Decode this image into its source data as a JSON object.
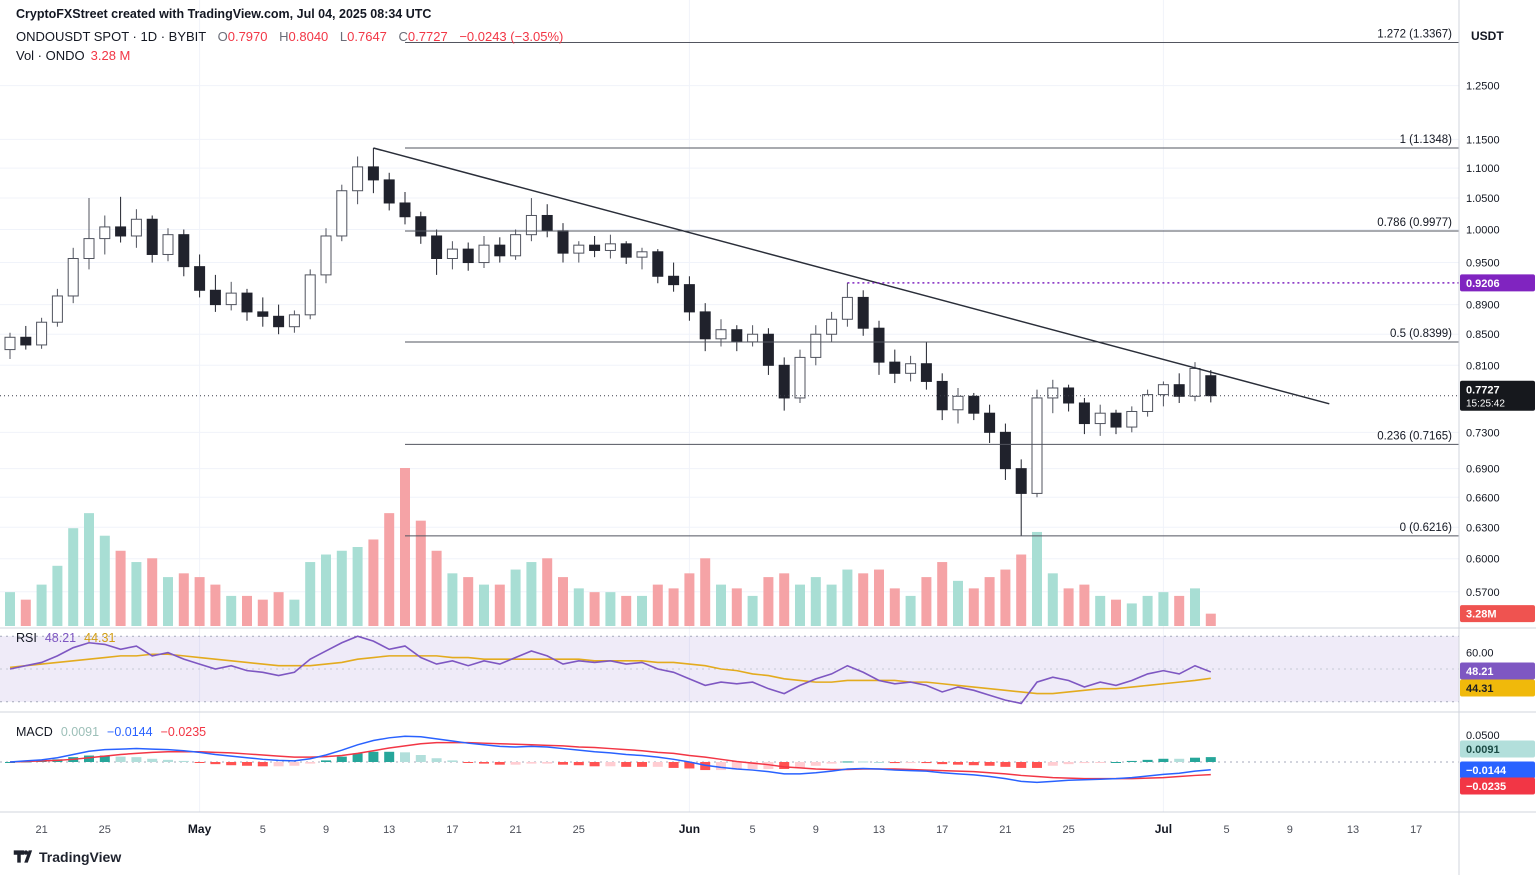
{
  "header": {
    "attribution": "CryptoFXStreet created with TradingView.com, Jul 04, 2025 08:34 UTC",
    "symbol_title": "ONDOUSDT SPOT · 1D · BYBIT",
    "ohlc": {
      "o_label": "O",
      "o": "0.7970",
      "h_label": "H",
      "h": "0.8040",
      "l_label": "L",
      "l": "0.7647",
      "c_label": "C",
      "c": "0.7727",
      "change": "−0.0243 (−3.05%)"
    },
    "volume_label": "Vol · ONDO",
    "volume_value": "3.28 M"
  },
  "axis": {
    "currency": "USDT",
    "price_ticks": [
      {
        "label": "1.2500",
        "v": 1.25
      },
      {
        "label": "1.1500",
        "v": 1.15
      },
      {
        "label": "1.1000",
        "v": 1.1
      },
      {
        "label": "1.0500",
        "v": 1.05
      },
      {
        "label": "1.0000",
        "v": 1.0
      },
      {
        "label": "0.9500",
        "v": 0.95
      },
      {
        "label": "0.8900",
        "v": 0.89
      },
      {
        "label": "0.8500",
        "v": 0.85
      },
      {
        "label": "0.8100",
        "v": 0.81
      },
      {
        "label": "0.7300",
        "v": 0.73
      },
      {
        "label": "0.6900",
        "v": 0.69
      },
      {
        "label": "0.6600",
        "v": 0.66
      },
      {
        "label": "0.6300",
        "v": 0.63
      },
      {
        "label": "0.6000",
        "v": 0.6
      },
      {
        "label": "0.5700",
        "v": 0.57
      }
    ],
    "rsi_ticks": [
      {
        "label": "60.00",
        "v": 60
      }
    ],
    "macd_ticks": [
      {
        "label": "0.0500",
        "v": 0.05
      }
    ],
    "time_ticks": [
      {
        "label": "21",
        "index": 2
      },
      {
        "label": "25",
        "index": 6
      },
      {
        "label": "May",
        "index": 12,
        "month": true
      },
      {
        "label": "5",
        "index": 16
      },
      {
        "label": "9",
        "index": 20
      },
      {
        "label": "13",
        "index": 24
      },
      {
        "label": "17",
        "index": 28
      },
      {
        "label": "21",
        "index": 32
      },
      {
        "label": "25",
        "index": 36
      },
      {
        "label": "Jun",
        "index": 43,
        "month": true
      },
      {
        "label": "5",
        "index": 47
      },
      {
        "label": "9",
        "index": 51
      },
      {
        "label": "13",
        "index": 55
      },
      {
        "label": "17",
        "index": 59
      },
      {
        "label": "21",
        "index": 63
      },
      {
        "label": "25",
        "index": 67
      },
      {
        "label": "Jul",
        "index": 73,
        "month": true
      },
      {
        "label": "5",
        "index": 77
      },
      {
        "label": "9",
        "index": 81
      },
      {
        "label": "13",
        "index": 85
      },
      {
        "label": "17",
        "index": 89
      }
    ]
  },
  "overlays": {
    "fib_levels": [
      {
        "label": "1.272 (1.3367)",
        "price": 1.3367
      },
      {
        "label": "1 (1.1348)",
        "price": 1.1348
      },
      {
        "label": "0.786 (0.9977)",
        "price": 0.9977
      },
      {
        "label": "0.5 (0.8399)",
        "price": 0.8399
      },
      {
        "label": "0.236 (0.7165)",
        "price": 0.7165
      },
      {
        "label": "0 (0.6216)",
        "price": 0.6216
      }
    ],
    "trendline": {
      "i1": 23,
      "p1": 1.1348,
      "i2": 83.5,
      "p2": 0.763
    },
    "hline": {
      "price": 0.9206,
      "label": "0.9206",
      "start_index": 53
    },
    "last_price": {
      "value": 0.7727,
      "label": "0.7727",
      "countdown": "15:25:42"
    },
    "volume_badge": "3.28M"
  },
  "rsi_panel": {
    "label": "RSI",
    "value": "48.21",
    "ma_value": "44.31"
  },
  "macd_panel": {
    "label": "MACD",
    "hist_value": "0.0091",
    "macd_value": "−0.0144",
    "signal_value": "−0.0235"
  },
  "footer": {
    "logo_text": "TradingView"
  },
  "colors": {
    "up_fill": "#ffffff",
    "up_border": "#50535e",
    "down_fill": "#20222c",
    "vol_up": "#a8ded4",
    "vol_down": "#f5a3a6",
    "rsi_line": "#7e57c2",
    "rsi_ma_line": "#e3ab1e",
    "rsi_band": "rgba(126,87,194,0.12)",
    "macd_line": "#2962ff",
    "signal_line": "#f23645",
    "hist_pos_grow": "#26a69a",
    "hist_pos_fall": "#b2dfdb",
    "hist_neg_fall": "#ff5252",
    "hist_neg_grow": "#ffcdd2",
    "fib_line": "#52555f",
    "trend_line": "#2a2e39",
    "hline": "#8024c0",
    "last_badge_bg": "#16181d",
    "vol_badge_bg": "#ef5350",
    "rsi_badge_bg": "#7e57c2",
    "rsi_ma_badge_bg": "#f0b90b",
    "macd_hist_badge_bg": "#b2dfdb",
    "macd_badge_bg": "#2962ff",
    "signal_badge_bg": "#f23645",
    "accent_red": "#f23645",
    "grid": "#f0f3fa",
    "axis_border": "#d1d4dc",
    "text_dark": "#131722",
    "text_gray": "#4c4f59"
  },
  "chart_data": {
    "type": "candlestick",
    "symbol": "ONDOUSDT",
    "exchange": "BYBIT",
    "interval": "1D",
    "price_scale": "log",
    "ylim": [
      0.55,
      1.35
    ],
    "dates": [
      "04-19",
      "04-20",
      "04-21",
      "04-22",
      "04-23",
      "04-24",
      "04-25",
      "04-26",
      "04-27",
      "04-28",
      "04-29",
      "04-30",
      "05-01",
      "05-02",
      "05-03",
      "05-04",
      "05-05",
      "05-06",
      "05-07",
      "05-08",
      "05-09",
      "05-10",
      "05-11",
      "05-12",
      "05-13",
      "05-14",
      "05-15",
      "05-16",
      "05-17",
      "05-18",
      "05-19",
      "05-20",
      "05-21",
      "05-22",
      "05-23",
      "05-24",
      "05-25",
      "05-26",
      "05-27",
      "05-28",
      "05-29",
      "05-30",
      "05-31",
      "06-01",
      "06-02",
      "06-03",
      "06-04",
      "06-05",
      "06-06",
      "06-07",
      "06-08",
      "06-09",
      "06-10",
      "06-11",
      "06-12",
      "06-13",
      "06-14",
      "06-15",
      "06-16",
      "06-17",
      "06-18",
      "06-19",
      "06-20",
      "06-21",
      "06-22",
      "06-23",
      "06-24",
      "06-25",
      "06-26",
      "06-27",
      "06-28",
      "06-29",
      "06-30",
      "07-01",
      "07-02",
      "07-03",
      "07-04"
    ],
    "ohlc": [
      [
        0.83,
        0.852,
        0.818,
        0.846
      ],
      [
        0.846,
        0.861,
        0.83,
        0.836
      ],
      [
        0.836,
        0.872,
        0.831,
        0.866
      ],
      [
        0.866,
        0.912,
        0.86,
        0.902
      ],
      [
        0.902,
        0.972,
        0.892,
        0.956
      ],
      [
        0.956,
        1.05,
        0.94,
        0.986
      ],
      [
        0.986,
        1.022,
        0.962,
        1.004
      ],
      [
        1.004,
        1.052,
        0.98,
        0.99
      ],
      [
        0.99,
        1.032,
        0.972,
        1.016
      ],
      [
        1.016,
        1.022,
        0.95,
        0.962
      ],
      [
        0.962,
        1.002,
        0.952,
        0.992
      ],
      [
        0.992,
        1.0,
        0.93,
        0.944
      ],
      [
        0.944,
        0.962,
        0.9,
        0.91
      ],
      [
        0.91,
        0.932,
        0.88,
        0.89
      ],
      [
        0.89,
        0.922,
        0.882,
        0.906
      ],
      [
        0.906,
        0.912,
        0.868,
        0.88
      ],
      [
        0.88,
        0.9,
        0.86,
        0.874
      ],
      [
        0.874,
        0.89,
        0.85,
        0.86
      ],
      [
        0.86,
        0.882,
        0.852,
        0.876
      ],
      [
        0.876,
        0.94,
        0.87,
        0.932
      ],
      [
        0.932,
        1.002,
        0.92,
        0.99
      ],
      [
        0.99,
        1.072,
        0.982,
        1.062
      ],
      [
        1.062,
        1.12,
        1.04,
        1.102
      ],
      [
        1.102,
        1.1348,
        1.058,
        1.08
      ],
      [
        1.08,
        1.092,
        1.03,
        1.042
      ],
      [
        1.042,
        1.06,
        1.008,
        1.02
      ],
      [
        1.02,
        1.028,
        0.978,
        0.99
      ],
      [
        0.99,
        1.0,
        0.932,
        0.956
      ],
      [
        0.956,
        0.982,
        0.94,
        0.97
      ],
      [
        0.97,
        0.98,
        0.938,
        0.95
      ],
      [
        0.95,
        0.99,
        0.942,
        0.976
      ],
      [
        0.976,
        0.988,
        0.95,
        0.96
      ],
      [
        0.96,
        1.0,
        0.954,
        0.992
      ],
      [
        0.992,
        1.05,
        0.982,
        1.022
      ],
      [
        1.022,
        1.04,
        0.988,
        0.998
      ],
      [
        0.998,
        1.01,
        0.95,
        0.964
      ],
      [
        0.964,
        0.982,
        0.95,
        0.976
      ],
      [
        0.976,
        0.99,
        0.958,
        0.968
      ],
      [
        0.968,
        0.992,
        0.956,
        0.978
      ],
      [
        0.978,
        0.982,
        0.948,
        0.958
      ],
      [
        0.958,
        0.972,
        0.94,
        0.966
      ],
      [
        0.966,
        0.97,
        0.92,
        0.93
      ],
      [
        0.93,
        0.95,
        0.908,
        0.918
      ],
      [
        0.918,
        0.93,
        0.868,
        0.88
      ],
      [
        0.88,
        0.892,
        0.828,
        0.844
      ],
      [
        0.844,
        0.87,
        0.834,
        0.856
      ],
      [
        0.856,
        0.862,
        0.828,
        0.84
      ],
      [
        0.84,
        0.862,
        0.834,
        0.85
      ],
      [
        0.85,
        0.858,
        0.798,
        0.81
      ],
      [
        0.81,
        0.82,
        0.755,
        0.77
      ],
      [
        0.77,
        0.83,
        0.764,
        0.82
      ],
      [
        0.82,
        0.862,
        0.81,
        0.85
      ],
      [
        0.85,
        0.88,
        0.84,
        0.87
      ],
      [
        0.87,
        0.9206,
        0.86,
        0.9
      ],
      [
        0.9,
        0.91,
        0.848,
        0.858
      ],
      [
        0.858,
        0.868,
        0.798,
        0.814
      ],
      [
        0.814,
        0.83,
        0.788,
        0.8
      ],
      [
        0.8,
        0.822,
        0.79,
        0.812
      ],
      [
        0.812,
        0.84,
        0.78,
        0.79
      ],
      [
        0.79,
        0.8,
        0.744,
        0.756
      ],
      [
        0.756,
        0.782,
        0.74,
        0.772
      ],
      [
        0.772,
        0.776,
        0.744,
        0.752
      ],
      [
        0.752,
        0.762,
        0.718,
        0.73
      ],
      [
        0.73,
        0.74,
        0.678,
        0.69
      ],
      [
        0.69,
        0.7,
        0.6216,
        0.664
      ],
      [
        0.664,
        0.78,
        0.66,
        0.77
      ],
      [
        0.77,
        0.792,
        0.752,
        0.782
      ],
      [
        0.782,
        0.786,
        0.754,
        0.764
      ],
      [
        0.764,
        0.77,
        0.728,
        0.74
      ],
      [
        0.74,
        0.762,
        0.726,
        0.752
      ],
      [
        0.752,
        0.756,
        0.728,
        0.736
      ],
      [
        0.736,
        0.76,
        0.73,
        0.754
      ],
      [
        0.754,
        0.78,
        0.748,
        0.774
      ],
      [
        0.774,
        0.79,
        0.76,
        0.786
      ],
      [
        0.786,
        0.8,
        0.764,
        0.772
      ],
      [
        0.772,
        0.814,
        0.766,
        0.806
      ],
      [
        0.797,
        0.804,
        0.7647,
        0.7727
      ]
    ],
    "volume_m": [
      9,
      7,
      11,
      16,
      26,
      30,
      24,
      20,
      17,
      18,
      13,
      14,
      13,
      11,
      8,
      8,
      7,
      9,
      7,
      17,
      19,
      20,
      21,
      23,
      30,
      42,
      28,
      20,
      14,
      13,
      11,
      11,
      15,
      17,
      18,
      13,
      10,
      9,
      9,
      8,
      8,
      11,
      10,
      14,
      18,
      11,
      10,
      8,
      13,
      14,
      11,
      13,
      11,
      15,
      14,
      15,
      10,
      8,
      13,
      17,
      12,
      10,
      13,
      15,
      19,
      25,
      14,
      10,
      11,
      8,
      7,
      6,
      8,
      9,
      8,
      10,
      3.28
    ],
    "rsi": [
      50,
      52,
      54,
      58,
      63,
      66,
      65,
      62,
      64,
      58,
      60,
      56,
      53,
      50,
      52,
      49,
      48,
      46,
      48,
      56,
      61,
      66,
      70,
      67,
      62,
      64,
      57,
      53,
      55,
      52,
      55,
      53,
      57,
      61,
      58,
      53,
      55,
      54,
      55,
      53,
      54,
      50,
      48,
      44,
      40,
      42,
      41,
      42,
      38,
      35,
      40,
      44,
      47,
      52,
      48,
      43,
      41,
      42,
      40,
      36,
      39,
      37,
      34,
      31,
      29,
      42,
      45,
      43,
      39,
      42,
      40,
      43,
      47,
      49,
      47,
      52,
      48.21
    ],
    "rsi_ma": [
      51,
      52,
      53,
      54,
      55,
      56,
      57,
      58,
      58,
      59,
      59,
      58,
      57,
      56,
      55,
      54,
      53,
      52,
      52,
      52,
      53,
      54,
      56,
      57,
      58,
      58,
      58,
      58,
      57,
      57,
      56,
      56,
      56,
      56,
      56,
      56,
      56,
      55,
      55,
      55,
      55,
      54,
      54,
      53,
      52,
      50,
      49,
      47,
      46,
      44,
      43,
      42,
      42,
      43,
      43,
      43,
      43,
      42,
      42,
      41,
      40,
      39,
      38,
      37,
      36,
      35,
      35,
      36,
      37,
      38,
      38,
      39,
      40,
      41,
      42,
      43,
      44.31
    ],
    "macd": [
      0.0,
      0.002,
      0.004,
      0.008,
      0.014,
      0.02,
      0.023,
      0.024,
      0.025,
      0.024,
      0.023,
      0.021,
      0.018,
      0.014,
      0.011,
      0.008,
      0.005,
      0.003,
      0.002,
      0.006,
      0.013,
      0.022,
      0.032,
      0.04,
      0.045,
      0.048,
      0.047,
      0.043,
      0.039,
      0.035,
      0.032,
      0.029,
      0.028,
      0.029,
      0.028,
      0.025,
      0.022,
      0.019,
      0.017,
      0.014,
      0.012,
      0.009,
      0.005,
      0.0,
      -0.006,
      -0.01,
      -0.013,
      -0.015,
      -0.018,
      -0.022,
      -0.022,
      -0.02,
      -0.017,
      -0.013,
      -0.012,
      -0.013,
      -0.015,
      -0.016,
      -0.017,
      -0.02,
      -0.022,
      -0.024,
      -0.027,
      -0.031,
      -0.036,
      -0.038,
      -0.036,
      -0.034,
      -0.033,
      -0.032,
      -0.031,
      -0.029,
      -0.026,
      -0.023,
      -0.021,
      -0.017,
      -0.0144
    ],
    "macd_signal": [
      0.0,
      0.001,
      0.002,
      0.003,
      0.005,
      0.008,
      0.011,
      0.014,
      0.016,
      0.018,
      0.019,
      0.019,
      0.019,
      0.018,
      0.017,
      0.015,
      0.013,
      0.011,
      0.009,
      0.009,
      0.01,
      0.012,
      0.016,
      0.021,
      0.026,
      0.03,
      0.034,
      0.036,
      0.036,
      0.036,
      0.035,
      0.034,
      0.033,
      0.032,
      0.031,
      0.03,
      0.028,
      0.027,
      0.025,
      0.023,
      0.021,
      0.018,
      0.016,
      0.012,
      0.009,
      0.005,
      0.001,
      -0.002,
      -0.005,
      -0.009,
      -0.011,
      -0.013,
      -0.014,
      -0.014,
      -0.013,
      -0.013,
      -0.013,
      -0.014,
      -0.015,
      -0.016,
      -0.017,
      -0.018,
      -0.02,
      -0.022,
      -0.025,
      -0.027,
      -0.029,
      -0.03,
      -0.031,
      -0.031,
      -0.031,
      -0.031,
      -0.03,
      -0.029,
      -0.027,
      -0.025,
      -0.0235
    ]
  }
}
